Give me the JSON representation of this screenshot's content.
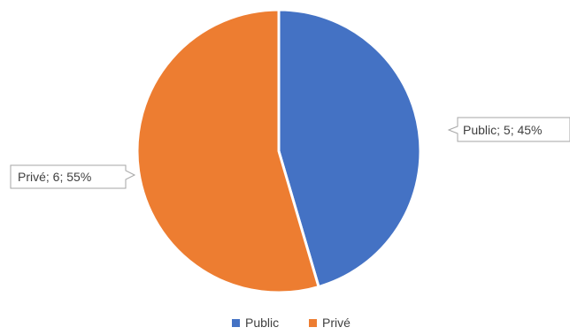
{
  "chart_data": {
    "type": "pie",
    "title": "",
    "legend_position": "bottom",
    "categories": [
      "Public",
      "Privé"
    ],
    "values": [
      5,
      6
    ],
    "percentages": [
      "45%",
      "55%"
    ],
    "colors": [
      "#4472C4",
      "#ED7D31"
    ],
    "data_labels": [
      "Public; 5; 45%",
      "Privé; 6; 55%"
    ],
    "legend": [
      {
        "label": "Public",
        "color": "#4472C4"
      },
      {
        "label": "Privé",
        "color": "#ED7D31"
      }
    ]
  }
}
